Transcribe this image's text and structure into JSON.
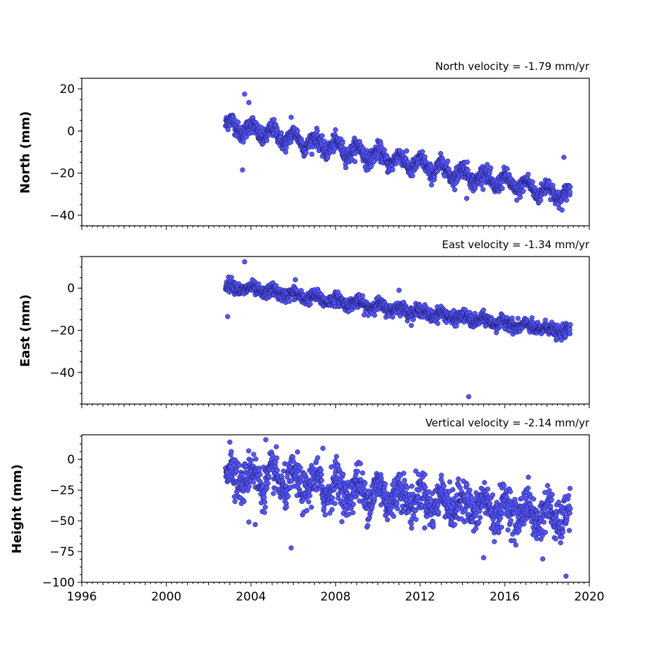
{
  "chart_data": [
    {
      "type": "scatter",
      "title": "North velocity = -1.79 mm/yr",
      "ylabel": "North (mm)",
      "xlim": [
        1996,
        2020
      ],
      "ylim": [
        -45,
        25
      ],
      "yticks": [
        20,
        0,
        -20,
        -40
      ],
      "ytick_labels": [
        "20",
        "0",
        "−20",
        "−40"
      ],
      "x_start": 2002.8,
      "x_end": 2019.1,
      "trend": [
        3,
        -31
      ],
      "seasonal_amplitude": 3.0,
      "noise": 2.0,
      "offsets": [
        {
          "x": 2006.0,
          "dy": -5
        }
      ],
      "outliers": [
        [
          2003.7,
          17.5
        ],
        [
          2003.9,
          13.5
        ],
        [
          2003.6,
          -18.5
        ],
        [
          2014.2,
          -32
        ],
        [
          2018.8,
          -12.5
        ],
        [
          2005.9,
          6.5
        ]
      ]
    },
    {
      "type": "scatter",
      "title": "East velocity = -1.34 mm/yr",
      "ylabel": "East (mm)",
      "xlim": [
        1996,
        2020
      ],
      "ylim": [
        -55,
        15
      ],
      "yticks": [
        0,
        -20,
        -40
      ],
      "ytick_labels": [
        "0",
        "−20",
        "−40"
      ],
      "x_start": 2002.8,
      "x_end": 2019.1,
      "trend": [
        1,
        -21
      ],
      "seasonal_amplitude": 1.2,
      "noise": 1.5,
      "offsets": [
        {
          "x": 2006.2,
          "dy": -3
        },
        {
          "x": 2011.3,
          "dy": -5
        }
      ],
      "outliers": [
        [
          2003.7,
          12.5
        ],
        [
          2002.9,
          -13.5
        ],
        [
          2014.3,
          -51.5
        ],
        [
          2011.0,
          -1
        ],
        [
          2006.1,
          4
        ]
      ]
    },
    {
      "type": "scatter",
      "title": "Vertical velocity = -2.14 mm/yr",
      "ylabel": "Height (mm)",
      "xlabel": "",
      "xlim": [
        1996,
        2020
      ],
      "ylim": [
        -100,
        20
      ],
      "yticks": [
        0,
        -25,
        -50,
        -75,
        -100
      ],
      "ytick_labels": [
        "0",
        "−25",
        "−50",
        "−75",
        "−100"
      ],
      "x_start": 2002.8,
      "x_end": 2019.1,
      "trend": [
        -12,
        -48
      ],
      "seasonal_amplitude": 8.0,
      "noise": 8.0,
      "offsets": [],
      "outliers": [
        [
          2003.0,
          14
        ],
        [
          2004.7,
          16
        ],
        [
          2005.9,
          -72
        ],
        [
          2007.4,
          9
        ],
        [
          2018.9,
          -95
        ],
        [
          2015.0,
          -80
        ],
        [
          2017.8,
          -81
        ],
        [
          2003.9,
          -51
        ],
        [
          2004.2,
          -53
        ]
      ]
    }
  ],
  "x_axis": {
    "ticks": [
      1996,
      2000,
      2004,
      2008,
      2012,
      2016,
      2020
    ],
    "tick_labels": [
      "1996",
      "2000",
      "2004",
      "2008",
      "2012",
      "2016",
      "2020"
    ]
  },
  "colors": {
    "marker_fill": "#5555ff",
    "marker_edge": "#141450",
    "axis": "#000000"
  }
}
